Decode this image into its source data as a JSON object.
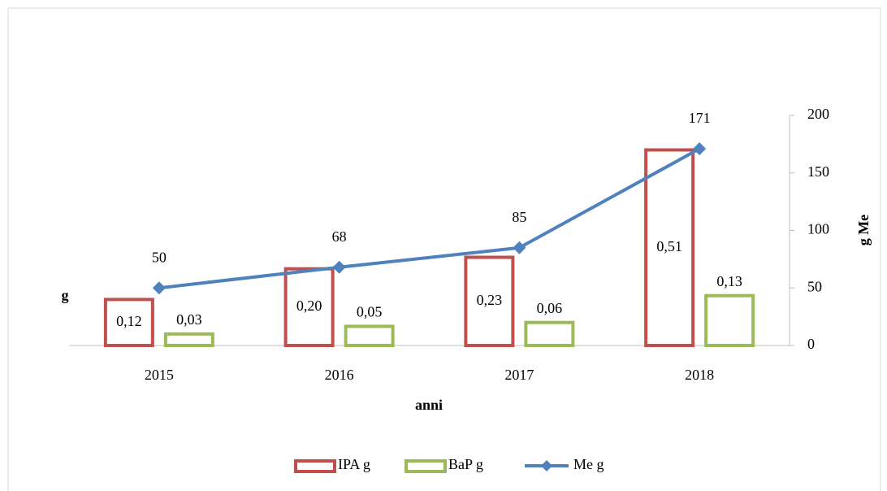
{
  "chart_data": {
    "type": "bar-line",
    "categories": [
      "2015",
      "2016",
      "2017",
      "2018"
    ],
    "series": [
      {
        "name": "IPA g",
        "type": "bar",
        "color": "#c0504d",
        "values": [
          0.12,
          0.2,
          0.23,
          0.51
        ],
        "value_labels": [
          "0,12",
          "0,20",
          "0,23",
          "0,51"
        ]
      },
      {
        "name": "BaP g",
        "type": "bar",
        "color": "#9bbb59",
        "values": [
          0.03,
          0.05,
          0.06,
          0.13
        ],
        "value_labels": [
          "0,03",
          "0,05",
          "0,06",
          "0,13"
        ]
      },
      {
        "name": "Me g",
        "type": "line",
        "axis": "y2",
        "color": "#4f81bd",
        "values": [
          50,
          68,
          85,
          171
        ]
      }
    ],
    "ylabel": "g",
    "y2label": "g Me",
    "xlabel": "anni",
    "ylim": [
      0,
      0.6
    ],
    "y2lim": [
      0,
      200
    ],
    "y2ticks": [
      0,
      50,
      100,
      150,
      200
    ],
    "legend": "bottom"
  }
}
